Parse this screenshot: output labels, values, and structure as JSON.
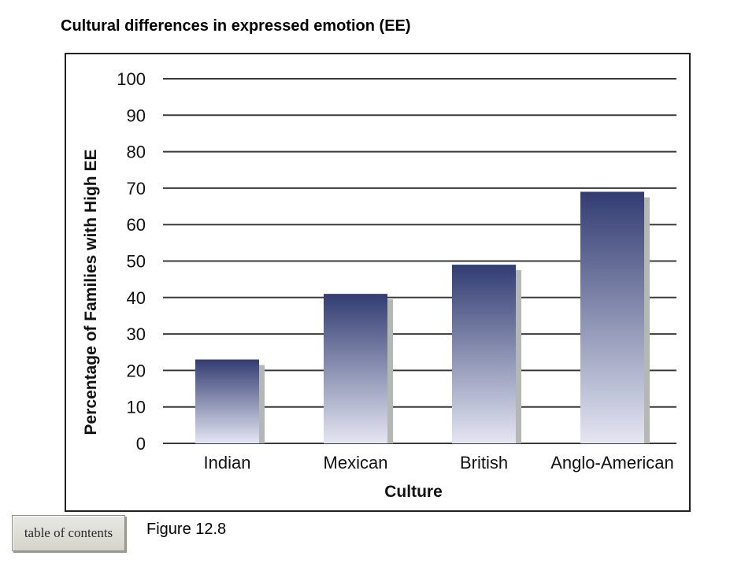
{
  "slide": {
    "title": "Cultural differences in expressed emotion (EE)",
    "caption": "Figure 12.8",
    "toc_label": "table of contents"
  },
  "chart_data": {
    "type": "bar",
    "title": "",
    "xlabel": "Culture",
    "ylabel": "Percentage of Families with High EE",
    "categories": [
      "Indian",
      "Mexican",
      "British",
      "Anglo-American"
    ],
    "values": [
      23,
      41,
      49,
      69
    ],
    "ylim": [
      0,
      100
    ],
    "yticks": [
      0,
      10,
      20,
      30,
      40,
      50,
      60,
      70,
      80,
      90,
      100
    ],
    "grid": true,
    "colors": {
      "bar_top": "#323c72",
      "bar_bottom": "#e4e6f2",
      "shadow": "#b3b8b4",
      "grid": "#3a3a3a"
    }
  }
}
